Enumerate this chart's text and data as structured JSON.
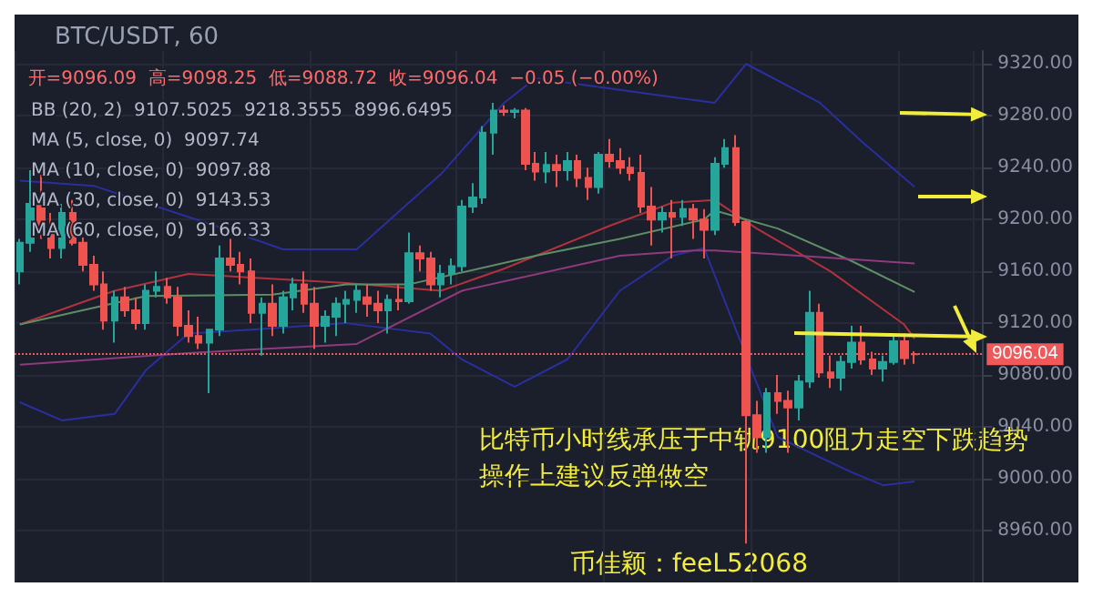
{
  "chart_data": {
    "type": "candlestick",
    "title": "BTC/USDT, 60",
    "annotations": [
      "开=9096.09  高=9098.25  低=9088.72  收=9096.04  −0.05 (−0.00%)",
      "BB (20, 2)  9107.5025  9218.3555  8996.6495",
      "MA (5, close, 0)  9097.74",
      "MA (10, close, 0)  9097.88",
      "MA (30, close, 0)  9143.53",
      "MA (60, close, 0)  9166.33",
      "比特币小时线承压于中轨9100阻力走空下跌趋势",
      "操作上建议反弹做空",
      "币佳颖：feeL52068"
    ],
    "categories": [
      null,
      null,
      null,
      null,
      null,
      null,
      null,
      null,
      null,
      null,
      null,
      null,
      null,
      null,
      null,
      null,
      null,
      null,
      null,
      null,
      null,
      null,
      null,
      null,
      null,
      null,
      null,
      null,
      null,
      null,
      null,
      null,
      null,
      null,
      null,
      null,
      null,
      null,
      null,
      null,
      null,
      null,
      null,
      null,
      null,
      null,
      null,
      null,
      null,
      null,
      null,
      null,
      null,
      null,
      null,
      null,
      null,
      null,
      null,
      null,
      null,
      null,
      null,
      null,
      null,
      null,
      null,
      null,
      null,
      null,
      null,
      null,
      null,
      null,
      null,
      null,
      null,
      null,
      null,
      null,
      null,
      null,
      null,
      null,
      null,
      null,
      null,
      null,
      null,
      null,
      null,
      null
    ],
    "ohlc": [
      [
        9160,
        9185,
        9150,
        9182
      ],
      [
        9182,
        9238,
        9175,
        9212
      ],
      [
        9212,
        9236,
        9185,
        9190
      ],
      [
        9190,
        9205,
        9170,
        9178
      ],
      [
        9178,
        9212,
        9170,
        9205
      ],
      [
        9205,
        9215,
        9180,
        9182
      ],
      [
        9182,
        9186,
        9160,
        9165
      ],
      [
        9165,
        9172,
        9145,
        9150
      ],
      [
        9150,
        9160,
        9115,
        9122
      ],
      [
        9122,
        9145,
        9105,
        9140
      ],
      [
        9140,
        9148,
        9125,
        9130
      ],
      [
        9130,
        9140,
        9115,
        9120
      ],
      [
        9120,
        9150,
        9115,
        9145
      ],
      [
        9145,
        9160,
        9140,
        9148
      ],
      [
        9148,
        9155,
        9135,
        9140
      ],
      [
        9140,
        9148,
        9110,
        9118
      ],
      [
        9118,
        9130,
        9105,
        9110
      ],
      [
        9110,
        9125,
        9100,
        9105
      ],
      [
        9105,
        9115,
        9066,
        9115
      ],
      [
        9115,
        9180,
        9110,
        9170
      ],
      [
        9170,
        9185,
        9160,
        9165
      ],
      [
        9165,
        9175,
        9150,
        9160
      ],
      [
        9160,
        9170,
        9120,
        9128
      ],
      [
        9128,
        9140,
        9095,
        9135
      ],
      [
        9135,
        9150,
        9110,
        9118
      ],
      [
        9118,
        9145,
        9112,
        9140
      ],
      [
        9140,
        9155,
        9130,
        9150
      ],
      [
        9150,
        9160,
        9128,
        9135
      ],
      [
        9135,
        9148,
        9100,
        9118
      ],
      [
        9118,
        9130,
        9105,
        9125
      ],
      [
        9125,
        9140,
        9110,
        9135
      ],
      [
        9135,
        9145,
        9120,
        9138
      ],
      [
        9138,
        9150,
        9128,
        9145
      ],
      [
        9140,
        9150,
        9125,
        9135
      ],
      [
        9135,
        9145,
        9120,
        9130
      ],
      [
        9130,
        9142,
        9112,
        9138
      ],
      [
        9138,
        9150,
        9130,
        9137
      ],
      [
        9137,
        9190,
        9135,
        9174
      ],
      [
        9174,
        9180,
        9160,
        9170
      ],
      [
        9170,
        9175,
        9145,
        9150
      ],
      [
        9150,
        9165,
        9140,
        9158
      ],
      [
        9158,
        9170,
        9150,
        9164
      ],
      [
        9164,
        9215,
        9160,
        9210
      ],
      [
        9210,
        9228,
        9205,
        9217
      ],
      [
        9217,
        9272,
        9212,
        9267
      ],
      [
        9267,
        9290,
        9250,
        9284
      ],
      [
        9284,
        9288,
        9280,
        9283
      ],
      [
        9283,
        9286,
        9278,
        9284
      ],
      [
        9284,
        9286,
        9238,
        9243
      ],
      [
        9243,
        9252,
        9230,
        9237
      ],
      [
        9237,
        9252,
        9228,
        9242
      ],
      [
        9242,
        9250,
        9225,
        9238
      ],
      [
        9238,
        9252,
        9230,
        9245
      ],
      [
        9245,
        9250,
        9225,
        9232
      ],
      [
        9232,
        9240,
        9215,
        9225
      ],
      [
        9225,
        9252,
        9220,
        9250
      ],
      [
        9250,
        9262,
        9240,
        9245
      ],
      [
        9245,
        9255,
        9235,
        9240
      ],
      [
        9240,
        9248,
        9230,
        9236
      ],
      [
        9236,
        9250,
        9205,
        9210
      ],
      [
        9210,
        9225,
        9180,
        9200
      ],
      [
        9200,
        9210,
        9190,
        9205
      ],
      [
        9205,
        9215,
        9170,
        9202
      ],
      [
        9202,
        9215,
        9195,
        9208
      ],
      [
        9208,
        9212,
        9185,
        9200
      ],
      [
        9200,
        9208,
        9170,
        9192
      ],
      [
        9192,
        9248,
        9188,
        9243
      ],
      [
        9243,
        9262,
        9240,
        9255
      ],
      [
        9255,
        9265,
        9195,
        9198
      ],
      [
        9198,
        9200,
        8950,
        9049
      ],
      [
        9049,
        9060,
        9020,
        9032
      ],
      [
        9032,
        9070,
        9020,
        9066
      ],
      [
        9066,
        9080,
        9050,
        9060
      ],
      [
        9060,
        9068,
        9020,
        9055
      ],
      [
        9055,
        9080,
        9045,
        9075
      ],
      [
        9075,
        9145,
        9070,
        9128
      ],
      [
        9128,
        9135,
        9078,
        9082
      ],
      [
        9082,
        9095,
        9070,
        9078
      ],
      [
        9078,
        9095,
        9068,
        9090
      ],
      [
        9090,
        9118,
        9085,
        9105
      ],
      [
        9105,
        9118,
        9088,
        9092
      ],
      [
        9092,
        9098,
        9080,
        9085
      ],
      [
        9085,
        9095,
        9075,
        9090
      ],
      [
        9090,
        9110,
        9088,
        9106
      ],
      [
        9106,
        9112,
        9088,
        9093
      ],
      [
        9096.09,
        9098.25,
        9088.72,
        9096.04
      ],
      null,
      null,
      null,
      null,
      null,
      null
    ],
    "series": [
      {
        "type": "line",
        "color": "#2a2f9e",
        "values": [
          9230,
          null,
          null,
          null,
          null,
          null,
          null,
          9226,
          null,
          null,
          null,
          null,
          null,
          null,
          null,
          null,
          null,
          null,
          null,
          9194,
          null,
          null,
          null,
          null,
          null,
          9177,
          null,
          null,
          null,
          null,
          null,
          null,
          9177,
          null,
          null,
          null,
          null,
          null,
          null,
          null,
          9235,
          null,
          null,
          null,
          null,
          null,
          9290,
          null,
          null,
          9309,
          null,
          null,
          null,
          null,
          null,
          null,
          null,
          null,
          null,
          null,
          null,
          null,
          null,
          null,
          null,
          null,
          9290,
          null,
          null,
          9320,
          null,
          null,
          null,
          null,
          null,
          null,
          9290,
          null,
          null,
          null,
          9260,
          null,
          null,
          null,
          null,
          9225,
          null,
          null,
          null,
          null,
          null,
          null
        ]
      },
      {
        "type": "line",
        "color": "#2a2f9e",
        "values": [
          9059,
          null,
          null,
          null,
          9045,
          null,
          null,
          null,
          null,
          9050,
          null,
          null,
          9084,
          null,
          null,
          null,
          9112,
          null,
          null,
          null,
          null,
          null,
          9115,
          null,
          null,
          null,
          null,
          null,
          null,
          null,
          null,
          9120,
          null,
          null,
          null,
          null,
          null,
          null,
          null,
          9112,
          null,
          null,
          9092,
          null,
          null,
          null,
          null,
          9071,
          null,
          null,
          null,
          null,
          9092,
          null,
          null,
          null,
          null,
          9145,
          null,
          null,
          null,
          null,
          9172,
          null,
          null,
          9178,
          null,
          null,
          null,
          null,
          null,
          null,
          9032,
          null,
          null,
          null,
          null,
          null,
          null,
          9005,
          null,
          null,
          8995,
          null,
          null,
          8998,
          null,
          null,
          null,
          null,
          null,
          null
        ]
      },
      {
        "type": "line",
        "color": "#b2323c",
        "values": [
          9119,
          null,
          null,
          null,
          null,
          null,
          null,
          null,
          null,
          9145,
          null,
          null,
          null,
          null,
          null,
          null,
          9158,
          null,
          null,
          null,
          null,
          null,
          null,
          null,
          null,
          null,
          null,
          null,
          null,
          null,
          null,
          9151,
          null,
          null,
          null,
          null,
          null,
          null,
          null,
          null,
          9145,
          null,
          null,
          null,
          null,
          null,
          9162,
          null,
          null,
          null,
          null,
          null,
          null,
          null,
          null,
          null,
          9195,
          null,
          null,
          null,
          null,
          null,
          9213,
          null,
          null,
          null,
          9215,
          null,
          null,
          null,
          9193,
          null,
          null,
          null,
          null,
          null,
          null,
          9160,
          null,
          null,
          null,
          null,
          null,
          null,
          9119,
          9108,
          null,
          null,
          null,
          null,
          null,
          null
        ]
      },
      {
        "type": "line",
        "color": "#5e8f64",
        "values": [
          9119,
          null,
          null,
          null,
          null,
          null,
          null,
          null,
          null,
          null,
          null,
          null,
          9141,
          null,
          null,
          null,
          null,
          null,
          null,
          null,
          null,
          null,
          null,
          null,
          9142,
          null,
          null,
          null,
          null,
          null,
          null,
          9150,
          null,
          null,
          null,
          null,
          null,
          9150,
          null,
          null,
          null,
          null,
          null,
          null,
          null,
          null,
          null,
          null,
          null,
          9172,
          null,
          null,
          null,
          null,
          null,
          null,
          null,
          9185,
          null,
          null,
          null,
          null,
          null,
          null,
          null,
          9200,
          9207,
          null,
          null,
          null,
          null,
          null,
          9193,
          null,
          null,
          null,
          null,
          null,
          null,
          9168,
          null,
          null,
          null,
          null,
          null,
          9144,
          null,
          null,
          null,
          null,
          null,
          null
        ]
      },
      {
        "type": "line",
        "color": "#8e3a7c",
        "values": [
          9088,
          null,
          null,
          null,
          null,
          null,
          null,
          null,
          null,
          null,
          null,
          null,
          null,
          null,
          null,
          null,
          9097,
          null,
          null,
          null,
          null,
          null,
          null,
          null,
          null,
          null,
          null,
          null,
          null,
          null,
          null,
          null,
          9104,
          null,
          null,
          null,
          null,
          null,
          null,
          null,
          null,
          null,
          9145,
          null,
          null,
          null,
          null,
          null,
          null,
          null,
          null,
          null,
          null,
          null,
          null,
          null,
          null,
          9172,
          null,
          null,
          null,
          null,
          null,
          null,
          9176,
          null,
          9176,
          null,
          null,
          null,
          null,
          null,
          null,
          null,
          9172,
          null,
          null,
          null,
          null,
          null,
          null,
          null,
          null,
          null,
          null,
          9166,
          null,
          null,
          null,
          null,
          null,
          null
        ]
      }
    ],
    "ylim": [
      8920,
      9330
    ],
    "yticks": [
      {
        "value": 8960,
        "label": "8960.00"
      },
      {
        "value": 9000,
        "label": "9000.00"
      },
      {
        "value": 9040,
        "label": "9040.00"
      },
      {
        "value": 9080,
        "label": "9080.00"
      },
      {
        "value": 9120,
        "label": "9120.00"
      },
      {
        "value": 9160,
        "label": "9160.00"
      },
      {
        "value": 9200,
        "label": "9200.00"
      },
      {
        "value": 9240,
        "label": "9240.00"
      },
      {
        "value": 9280,
        "label": "9280.00"
      },
      {
        "value": 9320,
        "label": "9320.00"
      }
    ],
    "tick_labels": "y",
    "grid": true,
    "line_style": "solid",
    "ref_lines": [
      {
        "axis": "y",
        "value": 9096.04,
        "label": "9096.04",
        "color": "#f0585a",
        "line_style": "dotted"
      }
    ]
  }
}
